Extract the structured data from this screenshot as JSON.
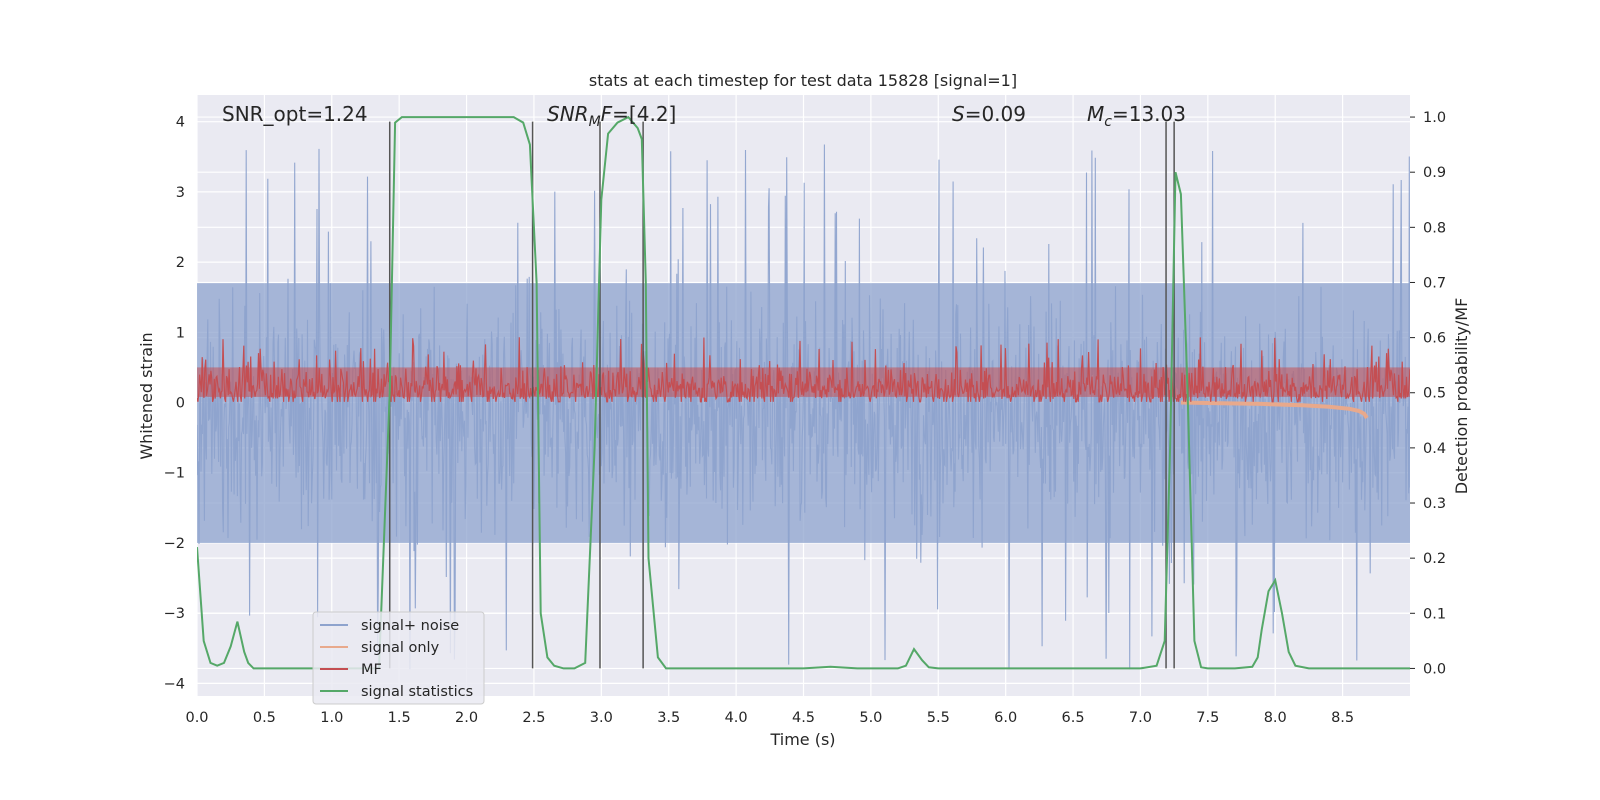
{
  "chart_data": {
    "type": "line",
    "title": "stats at each timestep for test data 15828 [signal=1]",
    "xlabel": "Time (s)",
    "ylabel_left": "Whitened strain",
    "ylabel_right": "Detection probability/MF",
    "xlim": [
      0,
      9.0
    ],
    "ylim_left": [
      -4.18,
      4.38
    ],
    "ylim_right": [
      -0.05,
      1.04
    ],
    "x_ticks": [
      "0.0",
      "0.5",
      "1.0",
      "1.5",
      "2.0",
      "2.5",
      "3.0",
      "3.5",
      "4.0",
      "4.5",
      "5.0",
      "5.5",
      "6.0",
      "6.5",
      "7.0",
      "7.5",
      "8.0",
      "8.5"
    ],
    "y_ticks_left": [
      "-4",
      "-3",
      "-2",
      "-1",
      "0",
      "1",
      "2",
      "3",
      "4"
    ],
    "y_ticks_right": [
      "0.0",
      "0.1",
      "0.2",
      "0.3",
      "0.4",
      "0.5",
      "0.6",
      "0.7",
      "0.8",
      "0.9",
      "1.0"
    ],
    "grid": true,
    "legend_position": "lower-left",
    "annotations": {
      "snr_opt": "SNR_opt=1.24",
      "snr_mf_base": "SNR",
      "snr_mf_sub": "M",
      "snr_mf_rest": "F=[4.2]",
      "s_sym": "S",
      "s_rest": "=0.09",
      "mc_base": "M",
      "mc_sub": "c",
      "mc_rest": "=13.03"
    },
    "vertical_lines_x": [
      1.43,
      2.49,
      2.99,
      3.31,
      7.19,
      7.25
    ],
    "series": [
      {
        "name": "signal+ noise",
        "color": "#8ea3cd",
        "description_kind": "noisy strain",
        "band_upper_typical": 1.7,
        "band_lower_typical": -2.0,
        "peak_max": 3.85,
        "peak_min": -3.8
      },
      {
        "name": "signal only",
        "color": "#e8a98c",
        "x": [
          7.3,
          7.6,
          7.9,
          8.2,
          8.4,
          8.55,
          8.62,
          8.66,
          8.68
        ],
        "values": [
          0.0,
          -0.01,
          -0.02,
          -0.04,
          -0.06,
          -0.09,
          -0.12,
          -0.16,
          -0.22
        ]
      },
      {
        "name": "MF",
        "color": "#c44e52",
        "band_upper_typical": 0.55,
        "band_lower_typical": 0.02,
        "peak_max": 1.0
      },
      {
        "name": "signal statistics",
        "color": "#55a868",
        "axis": "right",
        "x": [
          0.0,
          0.05,
          0.1,
          0.15,
          0.2,
          0.25,
          0.3,
          0.35,
          0.38,
          0.42,
          0.47,
          0.52,
          1.0,
          1.35,
          1.43,
          1.47,
          1.52,
          2.0,
          2.35,
          2.42,
          2.47,
          2.52,
          2.55,
          2.6,
          2.65,
          2.72,
          2.8,
          2.88,
          2.95,
          3.0,
          3.05,
          3.12,
          3.2,
          3.27,
          3.3,
          3.33,
          3.35,
          3.42,
          3.48,
          3.6,
          4.0,
          4.5,
          4.7,
          4.9,
          5.2,
          5.26,
          5.32,
          5.38,
          5.43,
          5.5,
          6.0,
          6.5,
          7.0,
          7.12,
          7.18,
          7.22,
          7.26,
          7.3,
          7.35,
          7.4,
          7.45,
          7.5,
          7.7,
          7.83,
          7.87,
          7.9,
          7.95,
          8.0,
          8.05,
          8.1,
          8.15,
          8.25,
          8.5,
          9.0
        ],
        "values": [
          0.22,
          0.05,
          0.01,
          0.005,
          0.01,
          0.04,
          0.085,
          0.03,
          0.01,
          0.0,
          0.0,
          0.0,
          0.0,
          0.0,
          0.5,
          0.99,
          1.0,
          1.0,
          1.0,
          0.99,
          0.95,
          0.7,
          0.1,
          0.02,
          0.005,
          0.0,
          0.0,
          0.01,
          0.4,
          0.85,
          0.97,
          0.99,
          1.0,
          0.98,
          0.96,
          0.7,
          0.2,
          0.02,
          0.0,
          0.0,
          0.0,
          0.0,
          0.003,
          0.0,
          0.0,
          0.005,
          0.035,
          0.015,
          0.002,
          0.0,
          0.0,
          0.0,
          0.0,
          0.005,
          0.05,
          0.4,
          0.9,
          0.86,
          0.5,
          0.05,
          0.002,
          0.0,
          0.0,
          0.003,
          0.02,
          0.07,
          0.14,
          0.16,
          0.1,
          0.03,
          0.005,
          0.0,
          0.0,
          0.0
        ]
      }
    ]
  },
  "colors": {
    "plot_background": "#eaeaf2",
    "grid": "#ffffff",
    "vline": "#555555"
  }
}
